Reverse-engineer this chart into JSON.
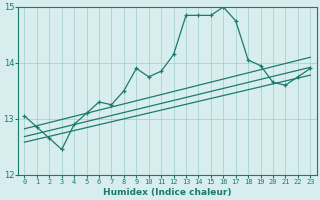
{
  "xlabel": "Humidex (Indice chaleur)",
  "ylabel": "",
  "bg_color": "#d8eeee",
  "line_color": "#1a7a6e",
  "grid_color": "#a0cccc",
  "xlim": [
    -0.5,
    23.5
  ],
  "ylim": [
    12,
    15
  ],
  "yticks": [
    12,
    13,
    14,
    15
  ],
  "xticks": [
    0,
    1,
    2,
    3,
    4,
    5,
    6,
    7,
    8,
    9,
    10,
    11,
    12,
    13,
    14,
    15,
    16,
    17,
    18,
    19,
    20,
    21,
    22,
    23
  ],
  "main_x": [
    0,
    1,
    2,
    3,
    4,
    5,
    6,
    7,
    8,
    9,
    10,
    11,
    12,
    13,
    14,
    15,
    16,
    17,
    18,
    19,
    20,
    21,
    22,
    23
  ],
  "main_y": [
    13.05,
    12.85,
    12.65,
    12.45,
    12.9,
    13.1,
    13.3,
    13.25,
    13.5,
    13.9,
    13.75,
    13.85,
    14.15,
    14.85,
    14.85,
    14.85,
    15.0,
    14.75,
    14.05,
    13.95,
    13.65,
    13.6,
    13.75,
    13.9
  ],
  "line1_x": [
    0,
    23
  ],
  "line1_y": [
    12.82,
    14.1
  ],
  "line2_x": [
    0,
    23
  ],
  "line2_y": [
    12.68,
    13.92
  ],
  "line3_x": [
    0,
    23
  ],
  "line3_y": [
    12.58,
    13.78
  ]
}
